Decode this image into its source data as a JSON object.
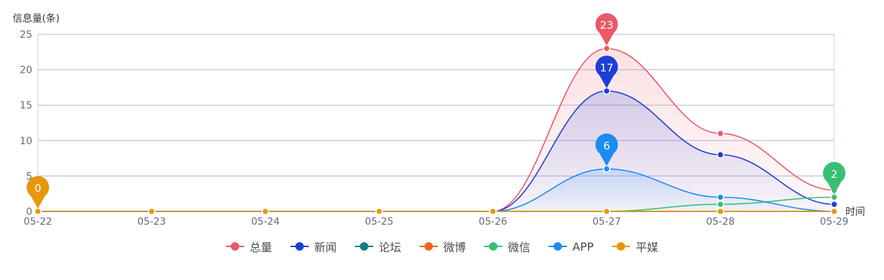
{
  "chart_data": {
    "type": "line",
    "ylabel": "信息量(条)",
    "xlabel": "时间",
    "categories": [
      "05-22",
      "05-23",
      "05-24",
      "05-25",
      "05-26",
      "05-27",
      "05-28",
      "05-29"
    ],
    "ylim": [
      0,
      25
    ],
    "yticks": [
      0,
      5,
      10,
      15,
      20,
      25
    ],
    "grid": true,
    "legend_position": "bottom",
    "series": [
      {
        "name": "总量",
        "color": "#ea5967",
        "values": [
          0,
          0,
          0,
          0,
          0,
          23,
          11,
          3
        ],
        "area": true,
        "peak_label": "23",
        "peak_index": 5
      },
      {
        "name": "新闻",
        "color": "#1e3fd6",
        "values": [
          0,
          0,
          0,
          0,
          0,
          17,
          8,
          1
        ],
        "area": true,
        "peak_label": "17",
        "peak_index": 5
      },
      {
        "name": "论坛",
        "color": "#157c8a",
        "values": [
          0,
          0,
          0,
          0,
          0,
          0,
          0,
          0
        ],
        "area": false
      },
      {
        "name": "微博",
        "color": "#f2631c",
        "values": [
          0,
          0,
          0,
          0,
          0,
          0,
          0,
          0
        ],
        "area": false
      },
      {
        "name": "微信",
        "color": "#37c074",
        "values": [
          0,
          0,
          0,
          0,
          0,
          0,
          1,
          2
        ],
        "area": false,
        "peak_label": "2",
        "peak_index": 7
      },
      {
        "name": "APP",
        "color": "#1a8cf2",
        "values": [
          0,
          0,
          0,
          0,
          0,
          6,
          2,
          0
        ],
        "area": true,
        "peak_label": "6",
        "peak_index": 5
      },
      {
        "name": "平媒",
        "color": "#e8960c",
        "values": [
          0,
          0,
          0,
          0,
          0,
          0,
          0,
          0
        ],
        "area": false,
        "peak_label": "0",
        "peak_index": 0
      }
    ]
  }
}
